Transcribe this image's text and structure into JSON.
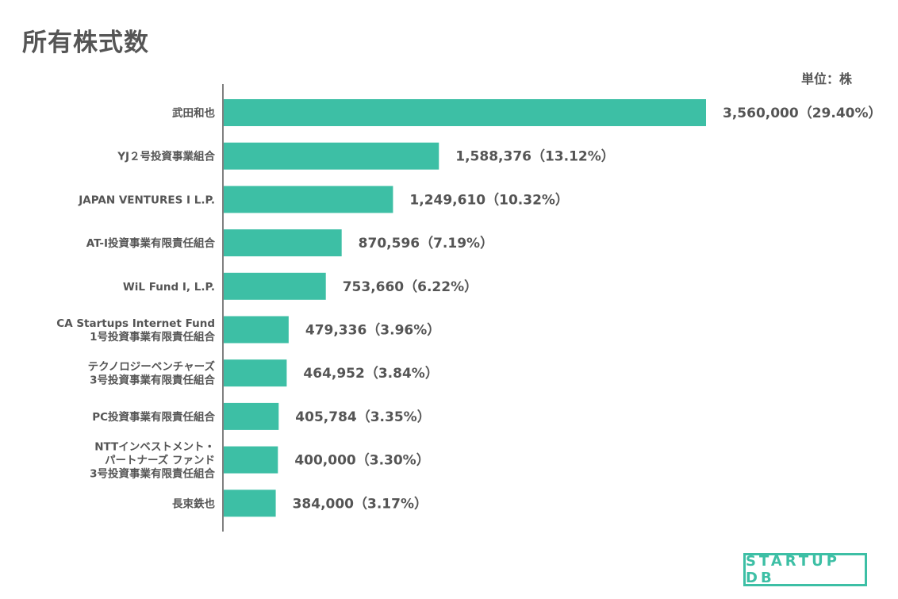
{
  "page": {
    "title": "所有株式数",
    "unit_label": "単位：株",
    "logo_text": "STARTUP DB"
  },
  "colors": {
    "bar": "#3dbfa5",
    "text": "#555555",
    "axis": "#555555"
  },
  "chart_data": {
    "type": "bar",
    "orientation": "horizontal",
    "title": "所有株式数",
    "unit": "単位：株",
    "xlim": [
      0,
      3560000
    ],
    "categories": [
      [
        "武田和也"
      ],
      [
        "YJ２号投資事業組合"
      ],
      [
        "JAPAN VENTURES I L.P."
      ],
      [
        "AT-Ⅰ投資事業有限責任組合"
      ],
      [
        "WiL Fund I, L.P."
      ],
      [
        "CA Startups Internet Fund",
        "1号投資事業有限責任組合"
      ],
      [
        "テクノロジーベンチャーズ",
        "3号投資事業有限責任組合"
      ],
      [
        "PC投資事業有限責任組合"
      ],
      [
        "NTTインベストメント・",
        "パートナーズ ファンド",
        "3号投資事業有限責任組合"
      ],
      [
        "長束鉄也"
      ]
    ],
    "values": [
      3560000,
      1588376,
      1249610,
      870596,
      753660,
      479336,
      464952,
      405784,
      400000,
      384000
    ],
    "data_labels": [
      "3,560,000（29.40%）",
      "1,588,376（13.12%）",
      "1,249,610（10.32%）",
      "870,596（7.19%）",
      "753,660（6.22%）",
      "479,336（3.96%）",
      "464,952（3.84%）",
      "405,784（3.35%）",
      "400,000（3.30%）",
      "384,000（3.17%）"
    ]
  }
}
